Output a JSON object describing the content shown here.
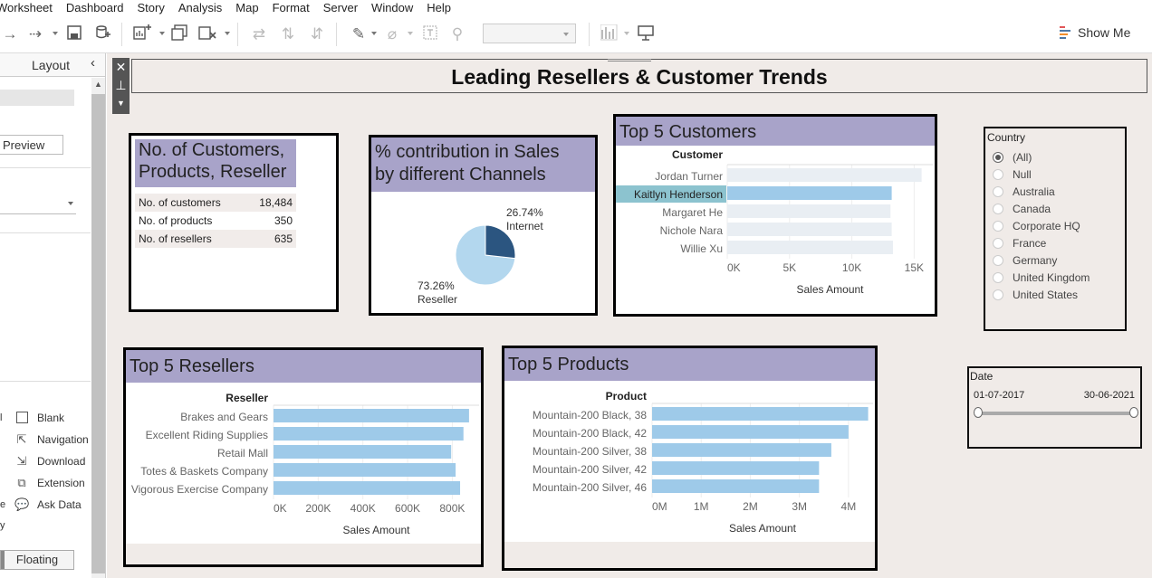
{
  "menu": [
    "Worksheet",
    "Dashboard",
    "Story",
    "Analysis",
    "Map",
    "Format",
    "Server",
    "Window",
    "Help"
  ],
  "toolbar": {
    "show_me_label": "Show Me"
  },
  "left_pane": {
    "tab_label": "Layout",
    "preview_label": "Preview",
    "objects": [
      "Blank",
      "Navigation",
      "Download",
      "Extension",
      "Ask Data"
    ],
    "floating_label": "Floating"
  },
  "dashboard": {
    "title": "Leading Resellers & Customer Trends",
    "kpi": {
      "title_line1": "No. of Customers,",
      "title_line2": "Products, Reseller",
      "rows": [
        {
          "label": "No. of customers",
          "value": "18,484"
        },
        {
          "label": "No. of products",
          "value": "350"
        },
        {
          "label": "No. of resellers",
          "value": "635"
        }
      ]
    },
    "channels": {
      "title_line1": "% contribution in Sales",
      "title_line2": "by different Channels",
      "internet_pct": "26.74%",
      "internet_label": "Internet",
      "reseller_pct": "73.26%",
      "reseller_label": "Reseller"
    },
    "customers_title": "Top 5 Customers",
    "resellers_title": "Top 5 Resellers",
    "products_title": "Top 5 Products",
    "country_filter": {
      "title": "Country",
      "options": [
        "(All)",
        "Null",
        "Australia",
        "Canada",
        "Corporate HQ",
        "France",
        "Germany",
        "United Kingdom",
        "United States"
      ],
      "selected": "(All)"
    },
    "date_filter": {
      "title": "Date",
      "start": "01-07-2017",
      "end": "30-06-2021"
    }
  },
  "chart_data": [
    {
      "type": "pie",
      "categories": [
        "Internet",
        "Reseller"
      ],
      "values": [
        26.74,
        73.26
      ],
      "colors": [
        "#2b5580",
        "#b3d7ee"
      ]
    },
    {
      "type": "bar",
      "orientation": "horizontal",
      "title": "Top 5 Customers",
      "ylabel": "Customer",
      "xlabel": "Sales Amount",
      "categories": [
        "Jordan Turner",
        "Kaitlyn Henderson",
        "Margaret He",
        "Nichole Nara",
        "Willie Xu"
      ],
      "values": [
        15600,
        13200,
        13100,
        13200,
        13300
      ],
      "highlighted": "Kaitlyn Henderson",
      "xlim": [
        0,
        16500
      ],
      "ticks": [
        0,
        5000,
        10000,
        15000
      ],
      "tick_labels": [
        "0K",
        "5K",
        "10K",
        "15K"
      ],
      "bar_color": "#e9eef3",
      "highlight_color": "#9ecae9"
    },
    {
      "type": "bar",
      "orientation": "horizontal",
      "title": "Top 5 Resellers",
      "ylabel": "Reseller",
      "xlabel": "Sales Amount",
      "categories": [
        "Brakes and Gears",
        "Excellent Riding Supplies",
        "Retail Mall",
        "Totes & Baskets Company",
        "Vigorous Exercise Company"
      ],
      "values": [
        875000,
        850000,
        795000,
        815000,
        835000
      ],
      "xlim": [
        0,
        920000
      ],
      "ticks": [
        0,
        200000,
        400000,
        600000,
        800000
      ],
      "tick_labels": [
        "0K",
        "200K",
        "400K",
        "600K",
        "800K"
      ],
      "bar_color": "#9ecae9"
    },
    {
      "type": "bar",
      "orientation": "horizontal",
      "title": "Top 5 Products",
      "ylabel": "Product",
      "xlabel": "Sales Amount",
      "categories": [
        "Mountain-200 Black, 38",
        "Mountain-200 Black, 42",
        "Mountain-200 Silver, 38",
        "Mountain-200 Silver, 42",
        "Mountain-200 Silver, 46"
      ],
      "values": [
        4400000,
        4000000,
        3650000,
        3400000,
        3400000
      ],
      "xlim": [
        0,
        4500000
      ],
      "ticks": [
        0,
        1000000,
        2000000,
        3000000,
        4000000
      ],
      "tick_labels": [
        "0M",
        "1M",
        "2M",
        "3M",
        "4M"
      ],
      "bar_color": "#9ecae9"
    }
  ]
}
